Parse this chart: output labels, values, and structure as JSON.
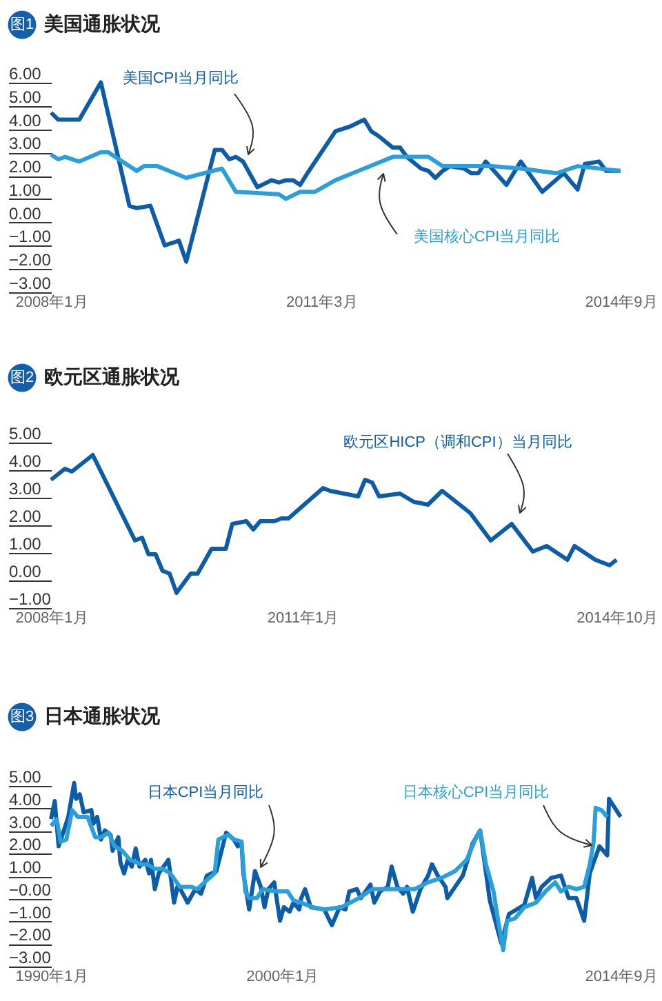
{
  "chart_data": [
    {
      "type": "line",
      "title": "美国通胀状况",
      "annotations": [
        "图1"
      ],
      "series": [
        {
          "name": "美国CPI当月同比",
          "color": "#0d5ca8",
          "x": [
            "2008-01",
            "2008-02",
            "2008-05",
            "2008-08",
            "2008-12",
            "2009-01",
            "2009-03",
            "2009-05",
            "2009-07",
            "2009-08",
            "2009-12",
            "2010-01",
            "2010-02",
            "2010-03",
            "2010-04",
            "2010-06",
            "2010-08",
            "2010-09",
            "2010-10",
            "2010-11",
            "2010-12",
            "2011-01",
            "2011-05",
            "2011-07",
            "2011-09",
            "2011-10",
            "2011-11",
            "2012-01",
            "2012-02",
            "2012-03",
            "2012-05",
            "2012-06",
            "2012-07",
            "2012-08",
            "2012-09",
            "2012-11",
            "2012-12",
            "2013-01",
            "2013-02",
            "2013-05",
            "2013-07",
            "2013-10",
            "2014-01",
            "2014-03",
            "2014-04",
            "2014-06",
            "2014-07",
            "2014-09"
          ],
          "values": [
            4.3,
            4.0,
            4.0,
            5.6,
            0.3,
            0.2,
            0.3,
            -1.4,
            -1.2,
            -2.1,
            2.7,
            2.7,
            2.3,
            2.4,
            2.2,
            1.1,
            1.4,
            1.3,
            1.4,
            1.4,
            1.2,
            1.7,
            3.5,
            3.7,
            4.0,
            3.5,
            3.3,
            2.8,
            2.8,
            2.4,
            1.9,
            1.8,
            1.5,
            1.8,
            2.0,
            1.9,
            1.7,
            1.7,
            2.2,
            1.2,
            2.2,
            0.9,
            1.7,
            1.0,
            2.1,
            2.2,
            1.8,
            1.8
          ]
        },
        {
          "name": "美国核心CPI当月同比",
          "color": "#2b9fd9",
          "x": [
            "2008-01",
            "2008-02",
            "2008-03",
            "2008-05",
            "2008-08",
            "2008-09",
            "2009-01",
            "2009-02",
            "2009-04",
            "2009-08",
            "2010-01",
            "2010-03",
            "2010-09",
            "2010-10",
            "2010-12",
            "2011-02",
            "2011-05",
            "2012-01",
            "2012-06",
            "2012-08",
            "2012-09",
            "2013-03",
            "2013-07",
            "2013-12",
            "2014-03",
            "2014-09"
          ],
          "values": [
            2.5,
            2.3,
            2.4,
            2.2,
            2.6,
            2.6,
            1.8,
            2.0,
            2.0,
            1.5,
            1.9,
            0.9,
            0.8,
            0.6,
            0.9,
            0.9,
            1.4,
            2.4,
            2.4,
            2.0,
            2.0,
            2.0,
            1.9,
            1.7,
            2.0,
            1.8
          ]
        }
      ],
      "xlim": [
        "2008-01",
        "2014-09"
      ],
      "xticks": [
        {
          "value": "2008-01",
          "label": "2008年1月"
        },
        {
          "value": "2011-03",
          "label": "2011年3月"
        },
        {
          "value": "2014-09",
          "label": "2014年9月"
        }
      ],
      "ylim": [
        -3,
        6
      ],
      "yticks": [
        {
          "value": 6,
          "label": "6.00"
        },
        {
          "value": 5,
          "label": "5.00"
        },
        {
          "value": 4,
          "label": "4.00"
        },
        {
          "value": 3,
          "label": "3.00"
        },
        {
          "value": 2,
          "label": "2.00"
        },
        {
          "value": 1,
          "label": "1.00"
        },
        {
          "value": 0,
          "label": "0.00"
        },
        {
          "value": -1,
          "label": "−1.00"
        },
        {
          "value": -2,
          "label": "−2.00"
        },
        {
          "value": -3,
          "label": "−3.00"
        }
      ]
    },
    {
      "type": "line",
      "title": "欧元区通胀状况",
      "annotations": [
        "图2"
      ],
      "series": [
        {
          "name": "欧元区HICP（调和CPI）当月同比",
          "color": "#0d5ca8",
          "x": [
            "2008-01",
            "2008-03",
            "2008-04",
            "2008-07",
            "2009-01",
            "2009-02",
            "2009-03",
            "2009-04",
            "2009-05",
            "2009-06",
            "2009-07",
            "2009-09",
            "2009-10",
            "2009-12",
            "2010-02",
            "2010-03",
            "2010-05",
            "2010-06",
            "2010-07",
            "2010-09",
            "2010-10",
            "2010-11",
            "2011-04",
            "2011-05",
            "2011-07",
            "2011-09",
            "2011-10",
            "2011-11",
            "2011-12",
            "2012-03",
            "2012-05",
            "2012-07",
            "2012-09",
            "2013-01",
            "2013-04",
            "2013-07",
            "2013-10",
            "2013-12",
            "2014-03",
            "2014-04",
            "2014-07",
            "2014-09",
            "2014-10"
          ],
          "values": [
            3.3,
            3.7,
            3.6,
            4.2,
            1.1,
            1.2,
            0.6,
            0.6,
            0.0,
            -0.1,
            -0.8,
            -0.1,
            -0.1,
            0.8,
            0.8,
            1.7,
            1.8,
            1.5,
            1.8,
            1.8,
            1.9,
            1.9,
            3.0,
            2.9,
            2.8,
            2.7,
            3.3,
            3.2,
            2.7,
            2.8,
            2.5,
            2.4,
            2.9,
            2.1,
            1.1,
            1.7,
            0.7,
            0.9,
            0.4,
            0.9,
            0.4,
            0.2,
            0.4
          ]
        }
      ],
      "xlim": [
        "2008-01",
        "2014-10"
      ],
      "xticks": [
        {
          "value": "2008-01",
          "label": "2008年1月"
        },
        {
          "value": "2011-01",
          "label": "2011年1月"
        },
        {
          "value": "2014-10",
          "label": "2014年10月"
        }
      ],
      "ylim": [
        -1,
        5
      ],
      "yticks": [
        {
          "value": 5,
          "label": "5.00"
        },
        {
          "value": 4,
          "label": "4.00"
        },
        {
          "value": 3,
          "label": "3.00"
        },
        {
          "value": 2,
          "label": "2.00"
        },
        {
          "value": 1,
          "label": "1.00"
        },
        {
          "value": 0,
          "label": "0.00"
        },
        {
          "value": -1,
          "label": "−1.00"
        }
      ]
    },
    {
      "type": "line",
      "title": "日本通胀状况",
      "annotations": [
        "图3"
      ],
      "series": [
        {
          "name": "日本CPI当月同比",
          "color": "#0d5ca8",
          "x": [
            "1990-01",
            "1990-03",
            "1990-05",
            "1990-10",
            "1991-01",
            "1991-02",
            "1991-04",
            "1991-06",
            "1991-10",
            "1991-11",
            "1992-01",
            "1992-03",
            "1992-05",
            "1992-08",
            "1992-09",
            "1992-12",
            "1993-01",
            "1993-03",
            "1993-05",
            "1993-07",
            "1993-09",
            "1993-11",
            "1994-02",
            "1994-04",
            "1994-05",
            "1994-07",
            "1994-09",
            "1995-02",
            "1995-05",
            "1995-07",
            "1995-12",
            "1996-04",
            "1996-07",
            "1996-10",
            "1997-03",
            "1997-08",
            "1997-12",
            "1998-02",
            "1998-04",
            "1998-05",
            "1998-08",
            "1998-11",
            "1999-02",
            "1999-04",
            "1999-06",
            "1999-09",
            "1999-12",
            "2000-02",
            "2000-05",
            "2000-07",
            "2000-10",
            "2000-11",
            "2001-01",
            "2001-04",
            "2001-11",
            "2002-03",
            "2002-07",
            "2002-10",
            "2002-12",
            "2003-04",
            "2003-06",
            "2003-11",
            "2004-01",
            "2004-04",
            "2004-08",
            "2004-10",
            "2005-01",
            "2005-04",
            "2005-06",
            "2005-09",
            "2006-01",
            "2006-05",
            "2006-07",
            "2006-10",
            "2007-02",
            "2007-03",
            "2007-11",
            "2008-04",
            "2008-08",
            "2009-01",
            "2009-07",
            "2009-11",
            "2010-03",
            "2010-07",
            "2010-11",
            "2011-01",
            "2011-04",
            "2011-09",
            "2012-02",
            "2012-06",
            "2012-10",
            "2013-02",
            "2013-05",
            "2013-10",
            "2014-02",
            "2014-03",
            "2014-09"
          ],
          "values": [
            3.1,
            3.9,
            1.9,
            3.2,
            4.7,
            4.0,
            4.2,
            3.4,
            3.5,
            2.9,
            3.2,
            2.2,
            2.6,
            2.4,
            1.7,
            2.3,
            1.2,
            0.7,
            1.3,
            1.0,
            1.8,
            1.0,
            1.3,
            0.7,
            1.3,
            0.0,
            0.7,
            1.3,
            -0.6,
            0.2,
            -0.6,
            0.0,
            -0.2,
            0.6,
            0.8,
            2.5,
            2.2,
            1.9,
            2.1,
            0.7,
            -0.9,
            0.8,
            0.1,
            -0.8,
            0.0,
            0.3,
            -1.4,
            -0.8,
            -1.0,
            -0.6,
            -0.9,
            -0.4,
            0.0,
            -0.8,
            -0.9,
            -1.6,
            -0.8,
            -0.9,
            -0.1,
            0.0,
            -0.4,
            0.2,
            -0.6,
            -0.1,
            0.1,
            1.0,
            0.1,
            -0.2,
            0.1,
            -1.0,
            0.0,
            0.6,
            1.1,
            0.6,
            0.1,
            -0.4,
            0.6,
            2.0,
            2.6,
            -0.5,
            -2.4,
            -1.1,
            -0.9,
            -0.7,
            0.5,
            -0.4,
            0.1,
            0.5,
            0.6,
            -0.4,
            -0.4,
            -1.4,
            0.7,
            1.9,
            1.5,
            4.0,
            3.2
          ]
        },
        {
          "name": "日本核心CPI当月同比",
          "color": "#2b9fd9",
          "x": [
            "1990-01",
            "1990-04",
            "1990-06",
            "1990-09",
            "1990-12",
            "1991-03",
            "1991-08",
            "1991-12",
            "1992-03",
            "1992-07",
            "1992-10",
            "1993-02",
            "1993-06",
            "1993-12",
            "1994-03",
            "1994-07",
            "1994-11",
            "1995-03",
            "1995-08",
            "1996-02",
            "1996-05",
            "1996-10",
            "1997-02",
            "1997-04",
            "1997-09",
            "1997-12",
            "1998-04",
            "1998-06",
            "1998-08",
            "1998-12",
            "1999-03",
            "1999-10",
            "2000-04",
            "2000-07",
            "2000-11",
            "2001-05",
            "2001-11",
            "2002-08",
            "2003-05",
            "2003-12",
            "2004-07",
            "2005-04",
            "2005-10",
            "2006-05",
            "2006-12",
            "2007-07",
            "2008-01",
            "2008-05",
            "2008-08",
            "2008-11",
            "2009-03",
            "2009-05",
            "2009-08",
            "2009-10",
            "2010-02",
            "2010-07",
            "2011-01",
            "2011-06",
            "2011-11",
            "2012-02",
            "2012-06",
            "2012-10",
            "2013-02",
            "2013-05",
            "2013-07",
            "2013-08",
            "2013-11",
            "2014-02"
          ],
          "values": [
            2.8,
            3.1,
            2.1,
            2.2,
            3.5,
            3.2,
            3.2,
            2.3,
            2.3,
            2.5,
            1.9,
            1.7,
            1.3,
            1.1,
            1.1,
            0.9,
            0.9,
            0.7,
            0.1,
            0.1,
            0.0,
            0.4,
            0.7,
            2.2,
            2.4,
            2.2,
            2.1,
            -0.1,
            -0.4,
            -0.4,
            0.0,
            -0.1,
            -0.1,
            -0.5,
            -0.6,
            -0.8,
            -0.9,
            -0.8,
            -0.4,
            0.0,
            0.0,
            0.0,
            0.0,
            0.3,
            0.5,
            0.8,
            1.3,
            2.1,
            2.6,
            1.1,
            -0.1,
            -1.2,
            -2.7,
            -1.4,
            -1.3,
            -0.8,
            -0.6,
            -0.1,
            0.3,
            -0.1,
            0.1,
            0.0,
            0.1,
            1.1,
            2.1,
            3.6,
            3.5,
            3.2
          ]
        }
      ],
      "xlim": [
        "1990-01",
        "2014-09"
      ],
      "xticks": [
        {
          "value": "1990-01",
          "label": "1990年1月"
        },
        {
          "value": "2000-01",
          "label": "2000年1月"
        },
        {
          "value": "2014-09",
          "label": "2014年9月"
        }
      ],
      "ylim": [
        -3,
        5
      ],
      "yticks": [
        {
          "value": 5,
          "label": "5.00"
        },
        {
          "value": 4,
          "label": "4.00"
        },
        {
          "value": 3,
          "label": "3.00"
        },
        {
          "value": 2,
          "label": "2.00"
        },
        {
          "value": 1,
          "label": "1.00"
        },
        {
          "value": 0,
          "label": "−0.00"
        },
        {
          "value": -1,
          "label": "−1.00"
        },
        {
          "value": -2,
          "label": "−2.00"
        },
        {
          "value": -3,
          "label": "−3.00"
        }
      ]
    }
  ]
}
